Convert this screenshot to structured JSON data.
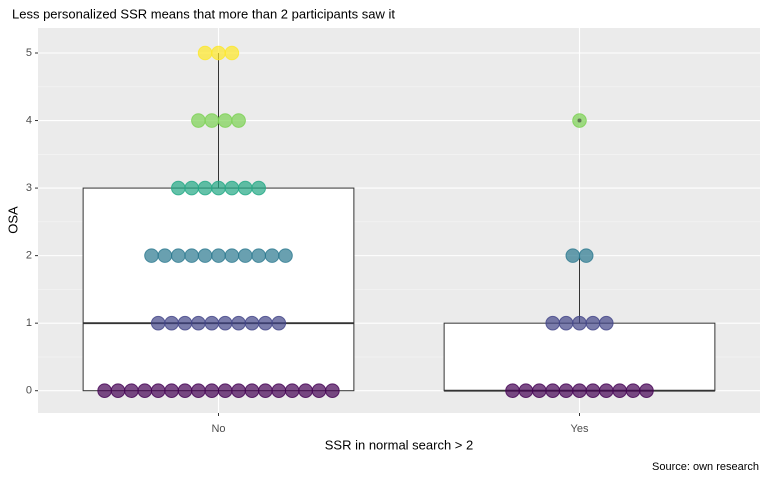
{
  "chart_data": {
    "type": "box",
    "title": "Less personalized SSR means that more than 2 participants saw it",
    "x_label": "SSR in normal search > 2",
    "y_label": "OSA",
    "caption": "Source: own research",
    "categories": [
      "No",
      "Yes"
    ],
    "min": [
      0,
      0
    ],
    "q1": [
      0,
      0
    ],
    "median": [
      1,
      0
    ],
    "q3": [
      3,
      1
    ],
    "max": [
      5,
      2
    ],
    "outliers": [
      [],
      [
        4
      ]
    ],
    "dot_levels": [
      0,
      1,
      2,
      3,
      4,
      5
    ],
    "dot_level_colors": [
      "#440154",
      "#414487",
      "#2a788e",
      "#22a884",
      "#7ad151",
      "#fde725"
    ],
    "dot_counts": [
      [
        18,
        10,
        11,
        7,
        4,
        3
      ],
      [
        11,
        5,
        2,
        0,
        1,
        0
      ]
    ],
    "ylim": [
      -0.33,
      5.37
    ],
    "yticks": [
      0,
      1,
      2,
      3,
      4,
      5
    ],
    "grid": true
  }
}
